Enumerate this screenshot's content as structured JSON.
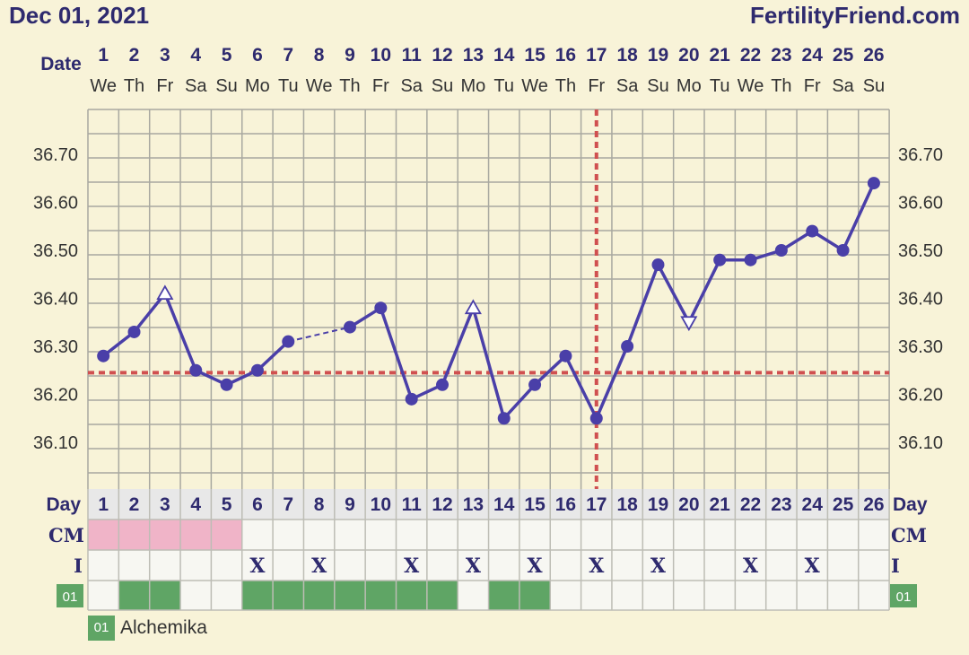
{
  "header": {
    "date": "Dec 01, 2021",
    "brand": "FertilityFriend.com"
  },
  "labels": {
    "date": "Date",
    "day": "Day",
    "cm": "CM",
    "intercourse": "I",
    "custom_code": "01"
  },
  "legend": [
    {
      "code": "01",
      "label": "Alchemika",
      "color": "#5fa565"
    }
  ],
  "chart_data": {
    "type": "line",
    "days": [
      1,
      2,
      3,
      4,
      5,
      6,
      7,
      8,
      9,
      10,
      11,
      12,
      13,
      14,
      15,
      16,
      17,
      18,
      19,
      20,
      21,
      22,
      23,
      24,
      25,
      26
    ],
    "weekdays": [
      "We",
      "Th",
      "Fr",
      "Sa",
      "Su",
      "Mo",
      "Tu",
      "We",
      "Th",
      "Fr",
      "Sa",
      "Su",
      "Mo",
      "Tu",
      "We",
      "Th",
      "Fr",
      "Sa",
      "Su",
      "Mo",
      "Tu",
      "We",
      "Th",
      "Fr",
      "Sa",
      "Su"
    ],
    "temperatures": [
      36.28,
      36.33,
      36.41,
      36.25,
      36.22,
      36.25,
      36.31,
      null,
      36.34,
      36.38,
      36.19,
      36.22,
      36.38,
      36.15,
      36.22,
      36.28,
      36.15,
      36.3,
      36.47,
      36.35,
      36.48,
      36.48,
      36.5,
      36.54,
      36.5,
      36.64
    ],
    "marker": [
      "dot",
      "dot",
      "triangle-up",
      "dot",
      "dot",
      "dot",
      "dot",
      "none",
      "dot",
      "dot",
      "dot",
      "dot",
      "triangle-up",
      "dot",
      "dot",
      "dot",
      "dot",
      "dot",
      "dot",
      "triangle-down",
      "dot",
      "dot",
      "dot",
      "dot",
      "dot",
      "dot"
    ],
    "y_ticks": [
      "36.70",
      "36.60",
      "36.50",
      "36.40",
      "36.30",
      "36.20",
      "36.10"
    ],
    "ylim": [
      36.0,
      36.82
    ],
    "coverline": 36.245,
    "ovulation_day": 17,
    "cm_days": [
      1,
      2,
      3,
      4,
      5
    ],
    "intercourse_days": [
      6,
      8,
      11,
      13,
      15,
      17,
      19,
      22,
      24
    ],
    "custom_days": [
      2,
      3,
      6,
      7,
      8,
      9,
      10,
      11,
      12,
      14,
      15
    ],
    "colors": {
      "line": "#4a3fa8",
      "dashed": "#d05050",
      "cm": "#f0b4c8",
      "custom": "#5fa565",
      "label": "#2e2a6e"
    }
  }
}
